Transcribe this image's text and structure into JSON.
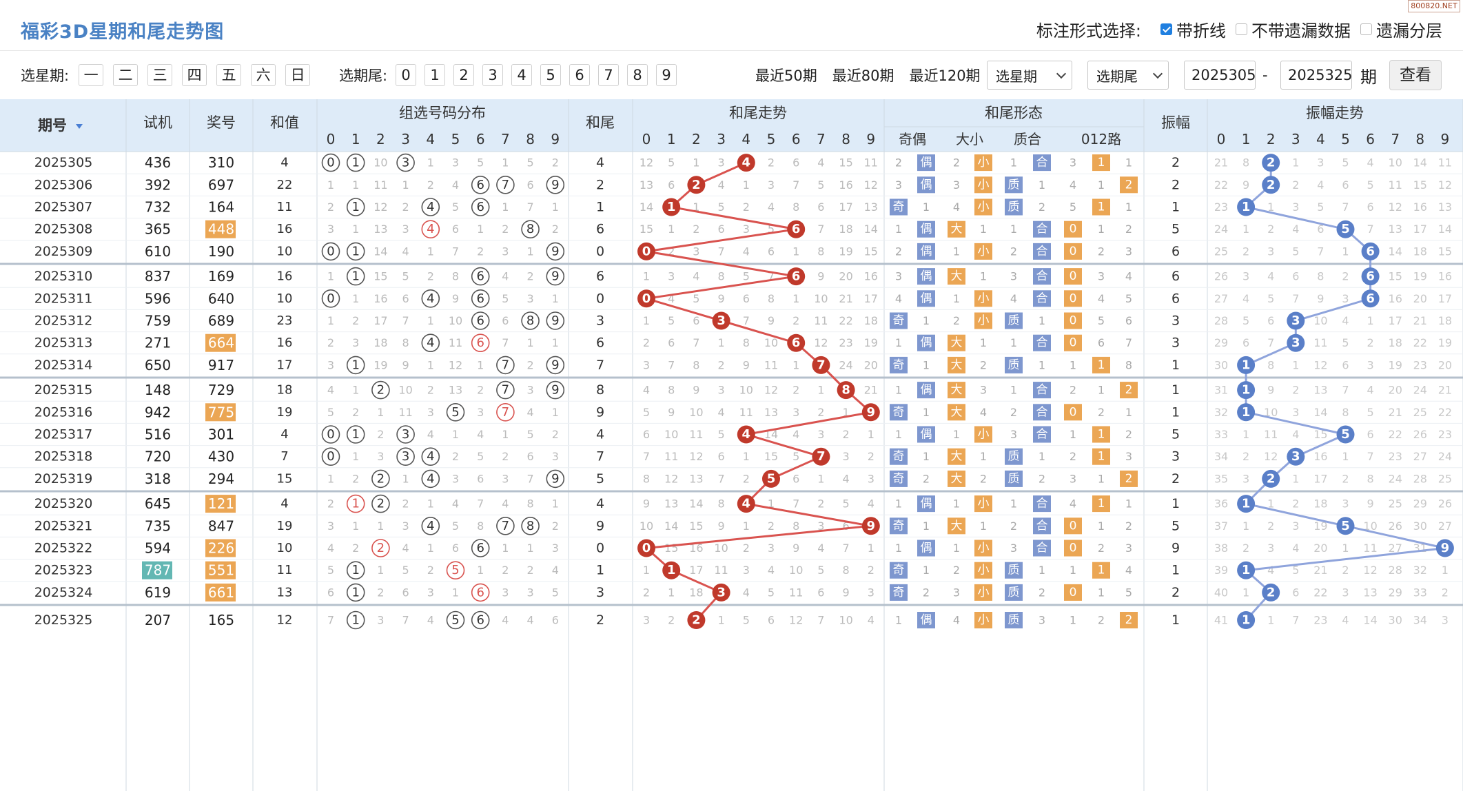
{
  "watermark": "800820.NET",
  "title": "福彩3D星期和尾走势图",
  "marking": {
    "label": "标注形式选择:",
    "options": [
      {
        "label": "带折线",
        "checked": true
      },
      {
        "label": "不带遗漏数据",
        "checked": false
      },
      {
        "label": "遗漏分层",
        "checked": false
      }
    ]
  },
  "filters": {
    "week_label": "选星期:",
    "weekdays": [
      "一",
      "二",
      "三",
      "四",
      "五",
      "六",
      "日"
    ],
    "tail_label": "选期尾:",
    "tails": [
      "0",
      "1",
      "2",
      "3",
      "4",
      "5",
      "6",
      "7",
      "8",
      "9"
    ],
    "recent": [
      "最近50期",
      "最近80期",
      "最近120期"
    ],
    "select_week": "选星期",
    "select_tail": "选期尾",
    "period_from": "2025305",
    "dash": "-",
    "period_to": "2025325",
    "period_unit": "期",
    "search": "查看"
  },
  "columns": {
    "issue": "期号",
    "sort_icon": "caret-down-icon",
    "test": "试机",
    "prize": "奖号",
    "sum": "和值",
    "dist": "组选号码分布",
    "tail": "和尾",
    "trend": "和尾走势",
    "form": "和尾形态",
    "form_sub": [
      "奇偶",
      "大小",
      "质合",
      "012路"
    ],
    "amp": "振幅",
    "amp_trend": "振幅走势",
    "digits": [
      "0",
      "1",
      "2",
      "3",
      "4",
      "5",
      "6",
      "7",
      "8",
      "9"
    ]
  },
  "colors": {
    "title": "#4a82c4",
    "header_bg": "#deebf8",
    "trend_ball": "#c0392b",
    "amp_ball": "#5a7fc8",
    "trend_line": "#d9534f",
    "amp_line": "#8fa4dc",
    "dist_red": "#d9534f",
    "prize_orange": "#eba654",
    "test_teal": "#63b7b3",
    "tag_blue": "#7e97cf",
    "tag_orange": "#eba654"
  },
  "rows": [
    {
      "issue": "2025305",
      "test": "436",
      "prize": "310",
      "sum": "4",
      "dist": [
        "0",
        "1",
        "10",
        "3",
        "1",
        "3",
        "5",
        "1",
        "5",
        "2"
      ],
      "tail": "4",
      "trend": [
        "12",
        "5",
        "1",
        "3",
        "4",
        "2",
        "6",
        "4",
        "15",
        "11"
      ],
      "oe": [
        "2",
        "偶"
      ],
      "bs": [
        "2",
        "小"
      ],
      "pc": [
        "1",
        "合"
      ],
      "r012": [
        "3",
        "1",
        "1"
      ],
      "amp": "2",
      "amptrend": [
        "21",
        "8",
        "2",
        "1",
        "3",
        "5",
        "4",
        "10",
        "14",
        "11"
      ]
    },
    {
      "issue": "2025306",
      "test": "392",
      "prize": "697",
      "sum": "22",
      "dist": [
        "1",
        "1",
        "11",
        "1",
        "2",
        "4",
        "6",
        "7",
        "6",
        "9"
      ],
      "tail": "2",
      "trend": [
        "13",
        "6",
        "2",
        "4",
        "1",
        "3",
        "7",
        "5",
        "16",
        "12"
      ],
      "oe": [
        "3",
        "偶"
      ],
      "bs": [
        "3",
        "小"
      ],
      "pc": [
        "质",
        "1"
      ],
      "r012": [
        "4",
        "1",
        "2"
      ],
      "amp": "2",
      "amptrend": [
        "22",
        "9",
        "2",
        "2",
        "4",
        "6",
        "5",
        "11",
        "15",
        "12"
      ]
    },
    {
      "issue": "2025307",
      "test": "732",
      "prize": "164",
      "sum": "11",
      "dist": [
        "2",
        "1",
        "12",
        "2",
        "4",
        "5",
        "6",
        "1",
        "7",
        "1"
      ],
      "tail": "1",
      "trend": [
        "14",
        "1",
        "1",
        "5",
        "2",
        "4",
        "8",
        "6",
        "17",
        "13"
      ],
      "oe": [
        "奇",
        "1"
      ],
      "bs": [
        "4",
        "小"
      ],
      "pc": [
        "质",
        "2"
      ],
      "r012": [
        "5",
        "1",
        "1"
      ],
      "amp": "1",
      "amptrend": [
        "23",
        "1",
        "1",
        "3",
        "5",
        "7",
        "6",
        "12",
        "16",
        "13"
      ]
    },
    {
      "issue": "2025308",
      "test": "365",
      "prize": "448",
      "sum": "16",
      "dist": [
        "3",
        "1",
        "13",
        "3",
        "4",
        "6",
        "1",
        "2",
        "8",
        "2"
      ],
      "tail": "6",
      "trend": [
        "15",
        "1",
        "2",
        "6",
        "3",
        "5",
        "6",
        "7",
        "18",
        "14"
      ],
      "oe": [
        "1",
        "偶"
      ],
      "bs": [
        "大",
        "1"
      ],
      "pc": [
        "1",
        "合"
      ],
      "r012": [
        "0",
        "1",
        "2"
      ],
      "amp": "5",
      "amptrend": [
        "24",
        "1",
        "2",
        "4",
        "6",
        "5",
        "7",
        "13",
        "17",
        "14"
      ]
    },
    {
      "issue": "2025309",
      "test": "610",
      "prize": "190",
      "sum": "10",
      "dist": [
        "0",
        "1",
        "14",
        "4",
        "1",
        "7",
        "2",
        "3",
        "1",
        "9"
      ],
      "tail": "0",
      "trend": [
        "0",
        "2",
        "3",
        "7",
        "4",
        "6",
        "1",
        "8",
        "19",
        "15"
      ],
      "oe": [
        "2",
        "偶"
      ],
      "bs": [
        "1",
        "小"
      ],
      "pc": [
        "2",
        "合"
      ],
      "r012": [
        "0",
        "2",
        "3"
      ],
      "amp": "6",
      "amptrend": [
        "25",
        "2",
        "3",
        "5",
        "7",
        "1",
        "6",
        "14",
        "18",
        "15"
      ]
    },
    {
      "issue": "2025310",
      "test": "837",
      "prize": "169",
      "sum": "16",
      "dist": [
        "1",
        "1",
        "15",
        "5",
        "2",
        "8",
        "6",
        "4",
        "2",
        "9"
      ],
      "tail": "6",
      "trend": [
        "1",
        "3",
        "4",
        "8",
        "5",
        "7",
        "6",
        "9",
        "20",
        "16"
      ],
      "oe": [
        "3",
        "偶"
      ],
      "bs": [
        "大",
        "1"
      ],
      "pc": [
        "3",
        "合"
      ],
      "r012": [
        "0",
        "3",
        "4"
      ],
      "amp": "6",
      "amptrend": [
        "26",
        "3",
        "4",
        "6",
        "8",
        "2",
        "6",
        "15",
        "19",
        "16"
      ]
    },
    {
      "issue": "2025311",
      "test": "596",
      "prize": "640",
      "sum": "10",
      "dist": [
        "0",
        "1",
        "16",
        "6",
        "4",
        "9",
        "6",
        "5",
        "3",
        "1"
      ],
      "tail": "0",
      "trend": [
        "0",
        "4",
        "5",
        "9",
        "6",
        "8",
        "1",
        "10",
        "21",
        "17"
      ],
      "oe": [
        "4",
        "偶"
      ],
      "bs": [
        "1",
        "小"
      ],
      "pc": [
        "4",
        "合"
      ],
      "r012": [
        "0",
        "4",
        "5"
      ],
      "amp": "6",
      "amptrend": [
        "27",
        "4",
        "5",
        "7",
        "9",
        "3",
        "6",
        "16",
        "20",
        "17"
      ]
    },
    {
      "issue": "2025312",
      "test": "759",
      "prize": "689",
      "sum": "23",
      "dist": [
        "1",
        "2",
        "17",
        "7",
        "1",
        "10",
        "6",
        "6",
        "8",
        "9"
      ],
      "tail": "3",
      "trend": [
        "1",
        "5",
        "6",
        "3",
        "7",
        "9",
        "2",
        "11",
        "22",
        "18"
      ],
      "oe": [
        "奇",
        "1"
      ],
      "bs": [
        "2",
        "小"
      ],
      "pc": [
        "质",
        "1"
      ],
      "r012": [
        "0",
        "5",
        "6"
      ],
      "amp": "3",
      "amptrend": [
        "28",
        "5",
        "6",
        "3",
        "10",
        "4",
        "1",
        "17",
        "21",
        "18"
      ]
    },
    {
      "issue": "2025313",
      "test": "271",
      "prize": "664",
      "sum": "16",
      "dist": [
        "2",
        "3",
        "18",
        "8",
        "4",
        "11",
        "6",
        "7",
        "1",
        "1"
      ],
      "tail": "6",
      "trend": [
        "2",
        "6",
        "7",
        "1",
        "8",
        "10",
        "6",
        "12",
        "23",
        "19"
      ],
      "oe": [
        "1",
        "偶"
      ],
      "bs": [
        "大",
        "1"
      ],
      "pc": [
        "1",
        "合"
      ],
      "r012": [
        "0",
        "6",
        "7"
      ],
      "amp": "3",
      "amptrend": [
        "29",
        "6",
        "7",
        "3",
        "11",
        "5",
        "2",
        "18",
        "22",
        "19"
      ]
    },
    {
      "issue": "2025314",
      "test": "650",
      "prize": "917",
      "sum": "17",
      "dist": [
        "3",
        "1",
        "19",
        "9",
        "1",
        "12",
        "1",
        "7",
        "2",
        "9"
      ],
      "tail": "7",
      "trend": [
        "3",
        "7",
        "8",
        "2",
        "9",
        "11",
        "1",
        "7",
        "24",
        "20"
      ],
      "oe": [
        "奇",
        "1"
      ],
      "bs": [
        "大",
        "2"
      ],
      "pc": [
        "质",
        "1"
      ],
      "r012": [
        "1",
        "1",
        "8"
      ],
      "amp": "1",
      "amptrend": [
        "30",
        "1",
        "8",
        "1",
        "12",
        "6",
        "3",
        "19",
        "23",
        "20"
      ]
    },
    {
      "issue": "2025315",
      "test": "148",
      "prize": "729",
      "sum": "18",
      "dist": [
        "4",
        "1",
        "2",
        "10",
        "2",
        "13",
        "2",
        "7",
        "3",
        "9"
      ],
      "tail": "8",
      "trend": [
        "4",
        "8",
        "9",
        "3",
        "10",
        "12",
        "2",
        "1",
        "8",
        "21"
      ],
      "oe": [
        "1",
        "偶"
      ],
      "bs": [
        "大",
        "3"
      ],
      "pc": [
        "1",
        "合"
      ],
      "r012": [
        "2",
        "1",
        "2"
      ],
      "amp": "1",
      "amptrend": [
        "31",
        "1",
        "9",
        "2",
        "13",
        "7",
        "4",
        "20",
        "24",
        "21"
      ]
    },
    {
      "issue": "2025316",
      "test": "942",
      "prize": "775",
      "sum": "19",
      "dist": [
        "5",
        "2",
        "1",
        "11",
        "3",
        "5",
        "3",
        "7",
        "4",
        "1"
      ],
      "tail": "9",
      "trend": [
        "5",
        "9",
        "10",
        "4",
        "11",
        "13",
        "3",
        "2",
        "1",
        "9"
      ],
      "oe": [
        "奇",
        "1"
      ],
      "bs": [
        "大",
        "4"
      ],
      "pc": [
        "2",
        "合"
      ],
      "r012": [
        "0",
        "2",
        "1"
      ],
      "amp": "1",
      "amptrend": [
        "32",
        "1",
        "10",
        "3",
        "14",
        "8",
        "5",
        "21",
        "25",
        "22"
      ]
    },
    {
      "issue": "2025317",
      "test": "516",
      "prize": "301",
      "sum": "4",
      "dist": [
        "0",
        "1",
        "2",
        "3",
        "4",
        "1",
        "4",
        "1",
        "5",
        "2"
      ],
      "tail": "4",
      "trend": [
        "6",
        "10",
        "11",
        "5",
        "4",
        "14",
        "4",
        "3",
        "2",
        "1"
      ],
      "oe": [
        "1",
        "偶"
      ],
      "bs": [
        "1",
        "小"
      ],
      "pc": [
        "3",
        "合"
      ],
      "r012": [
        "1",
        "1",
        "2"
      ],
      "amp": "5",
      "amptrend": [
        "33",
        "1",
        "11",
        "4",
        "15",
        "5",
        "6",
        "22",
        "26",
        "23"
      ]
    },
    {
      "issue": "2025318",
      "test": "720",
      "prize": "430",
      "sum": "7",
      "dist": [
        "0",
        "1",
        "3",
        "3",
        "4",
        "2",
        "5",
        "2",
        "6",
        "3"
      ],
      "tail": "7",
      "trend": [
        "7",
        "11",
        "12",
        "6",
        "1",
        "15",
        "5",
        "7",
        "3",
        "2"
      ],
      "oe": [
        "奇",
        "1"
      ],
      "bs": [
        "大",
        "1"
      ],
      "pc": [
        "质",
        "1"
      ],
      "r012": [
        "2",
        "1",
        "3"
      ],
      "amp": "3",
      "amptrend": [
        "34",
        "2",
        "12",
        "3",
        "16",
        "1",
        "7",
        "23",
        "27",
        "24"
      ]
    },
    {
      "issue": "2025319",
      "test": "318",
      "prize": "294",
      "sum": "15",
      "dist": [
        "1",
        "2",
        "2",
        "1",
        "4",
        "3",
        "6",
        "3",
        "7",
        "9"
      ],
      "tail": "5",
      "trend": [
        "8",
        "12",
        "13",
        "7",
        "2",
        "5",
        "6",
        "1",
        "4",
        "3"
      ],
      "oe": [
        "奇",
        "2"
      ],
      "bs": [
        "大",
        "2"
      ],
      "pc": [
        "质",
        "2"
      ],
      "r012": [
        "3",
        "1",
        "2"
      ],
      "amp": "2",
      "amptrend": [
        "35",
        "3",
        "2",
        "1",
        "17",
        "2",
        "8",
        "24",
        "28",
        "25"
      ]
    },
    {
      "issue": "2025320",
      "test": "645",
      "prize": "121",
      "sum": "4",
      "dist": [
        "2",
        "1",
        "2",
        "2",
        "1",
        "4",
        "7",
        "4",
        "8",
        "1"
      ],
      "tail": "4",
      "trend": [
        "9",
        "13",
        "14",
        "8",
        "4",
        "1",
        "7",
        "2",
        "5",
        "4"
      ],
      "oe": [
        "1",
        "偶"
      ],
      "bs": [
        "1",
        "小"
      ],
      "pc": [
        "1",
        "合"
      ],
      "r012": [
        "4",
        "1",
        "1"
      ],
      "amp": "1",
      "amptrend": [
        "36",
        "1",
        "1",
        "2",
        "18",
        "3",
        "9",
        "25",
        "29",
        "26"
      ]
    },
    {
      "issue": "2025321",
      "test": "735",
      "prize": "847",
      "sum": "19",
      "dist": [
        "3",
        "1",
        "1",
        "3",
        "4",
        "5",
        "8",
        "7",
        "8",
        "2"
      ],
      "tail": "9",
      "trend": [
        "10",
        "14",
        "15",
        "9",
        "1",
        "2",
        "8",
        "3",
        "6",
        "9"
      ],
      "oe": [
        "奇",
        "1"
      ],
      "bs": [
        "大",
        "1"
      ],
      "pc": [
        "2",
        "合"
      ],
      "r012": [
        "0",
        "1",
        "2"
      ],
      "amp": "5",
      "amptrend": [
        "37",
        "1",
        "2",
        "3",
        "19",
        "5",
        "10",
        "26",
        "30",
        "27"
      ]
    },
    {
      "issue": "2025322",
      "test": "594",
      "prize": "226",
      "sum": "10",
      "dist": [
        "4",
        "2",
        "2",
        "4",
        "1",
        "6",
        "6",
        "1",
        "1",
        "3"
      ],
      "tail": "0",
      "trend": [
        "0",
        "15",
        "16",
        "10",
        "2",
        "3",
        "9",
        "4",
        "7",
        "1"
      ],
      "oe": [
        "1",
        "偶"
      ],
      "bs": [
        "1",
        "小"
      ],
      "pc": [
        "3",
        "合"
      ],
      "r012": [
        "0",
        "2",
        "3"
      ],
      "amp": "9",
      "amptrend": [
        "38",
        "2",
        "3",
        "4",
        "20",
        "1",
        "11",
        "27",
        "31",
        "9"
      ]
    },
    {
      "issue": "2025323",
      "test": "787",
      "prize": "551",
      "sum": "11",
      "dist": [
        "5",
        "1",
        "1",
        "5",
        "2",
        "5",
        "1",
        "2",
        "2",
        "4"
      ],
      "tail": "1",
      "trend": [
        "1",
        "1",
        "17",
        "11",
        "3",
        "4",
        "10",
        "5",
        "8",
        "2"
      ],
      "oe": [
        "奇",
        "1"
      ],
      "bs": [
        "2",
        "小"
      ],
      "pc": [
        "质",
        "1"
      ],
      "r012": [
        "1",
        "1",
        "4"
      ],
      "amp": "1",
      "amptrend": [
        "39",
        "1",
        "4",
        "5",
        "21",
        "2",
        "12",
        "28",
        "32",
        "1"
      ]
    },
    {
      "issue": "2025324",
      "test": "619",
      "prize": "661",
      "sum": "13",
      "dist": [
        "6",
        "1",
        "2",
        "6",
        "3",
        "1",
        "6",
        "3",
        "3",
        "5"
      ],
      "tail": "3",
      "trend": [
        "2",
        "1",
        "18",
        "3",
        "4",
        "5",
        "11",
        "6",
        "9",
        "3"
      ],
      "oe": [
        "奇",
        "2"
      ],
      "bs": [
        "3",
        "小"
      ],
      "pc": [
        "质",
        "2"
      ],
      "r012": [
        "0",
        "1",
        "5"
      ],
      "amp": "2",
      "amptrend": [
        "40",
        "1",
        "2",
        "6",
        "22",
        "3",
        "13",
        "29",
        "33",
        "2"
      ]
    },
    {
      "issue": "2025325",
      "test": "207",
      "prize": "165",
      "sum": "12",
      "dist": [
        "7",
        "1",
        "3",
        "7",
        "4",
        "5",
        "6",
        "4",
        "4",
        "6"
      ],
      "tail": "2",
      "trend": [
        "3",
        "2",
        "2",
        "1",
        "5",
        "6",
        "12",
        "7",
        "10",
        "4"
      ],
      "oe": [
        "1",
        "偶"
      ],
      "bs": [
        "4",
        "小"
      ],
      "pc": [
        "质",
        "3"
      ],
      "r012": [
        "1",
        "2",
        "2"
      ],
      "amp": "1",
      "amptrend": [
        "41",
        "1",
        "1",
        "7",
        "23",
        "4",
        "14",
        "30",
        "34",
        "3"
      ]
    }
  ]
}
